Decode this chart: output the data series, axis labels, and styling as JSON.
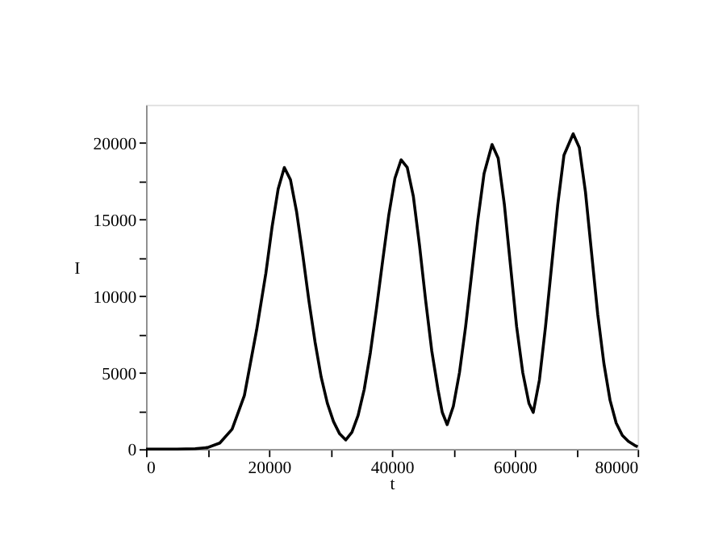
{
  "chart_data": {
    "type": "line",
    "xlabel": "t",
    "ylabel": "I",
    "xlim": [
      0,
      80000
    ],
    "ylim": [
      0,
      22500
    ],
    "xticks": [
      0,
      {
        "value": 10000,
        "label": null
      },
      20000,
      {
        "value": 30000,
        "label": null
      },
      40000,
      {
        "value": 50000,
        "label": null
      },
      60000,
      {
        "value": 70000,
        "label": null
      },
      80000
    ],
    "yticks": [
      0,
      {
        "value": 2500,
        "label": null
      },
      5000,
      {
        "value": 7500,
        "label": null
      },
      10000,
      {
        "value": 12500,
        "label": null
      },
      15000,
      {
        "value": 17500,
        "label": null
      },
      20000
    ],
    "grid": false,
    "marker": "none",
    "line_style": "solid",
    "series": [
      {
        "color": "#000000",
        "x": [
          0,
          5000,
          8000,
          10000,
          12000,
          14000,
          16000,
          18000,
          19500,
          20500,
          21500,
          22500,
          23500,
          24500,
          25500,
          26500,
          27500,
          28500,
          29500,
          30500,
          31500,
          32500,
          33500,
          34500,
          35500,
          36500,
          37500,
          38500,
          39500,
          40500,
          41500,
          42500,
          43500,
          44500,
          45500,
          46500,
          47500,
          48200,
          49000,
          50000,
          51000,
          52000,
          53000,
          54000,
          55000,
          56300,
          57300,
          58300,
          59300,
          60300,
          61300,
          62300,
          63000,
          64000,
          65000,
          66000,
          67000,
          68000,
          69500,
          70500,
          71500,
          72500,
          73500,
          74500,
          75500,
          76500,
          77500,
          78500,
          79500,
          80000
        ],
        "values": [
          0,
          5,
          30,
          100,
          400,
          1300,
          3500,
          7800,
          11500,
          14500,
          17000,
          18400,
          17600,
          15500,
          12700,
          9700,
          7000,
          4700,
          3000,
          1800,
          1000,
          600,
          1100,
          2200,
          3900,
          6300,
          9200,
          12300,
          15300,
          17700,
          18900,
          18400,
          16500,
          13300,
          9700,
          6400,
          3900,
          2400,
          1600,
          2800,
          5000,
          8000,
          11500,
          15000,
          18000,
          19900,
          19000,
          16000,
          12000,
          8000,
          5000,
          3000,
          2400,
          4500,
          8000,
          12000,
          16000,
          19200,
          20600,
          19700,
          16800,
          12800,
          8800,
          5600,
          3200,
          1700,
          900,
          500,
          250,
          150
        ]
      }
    ]
  }
}
